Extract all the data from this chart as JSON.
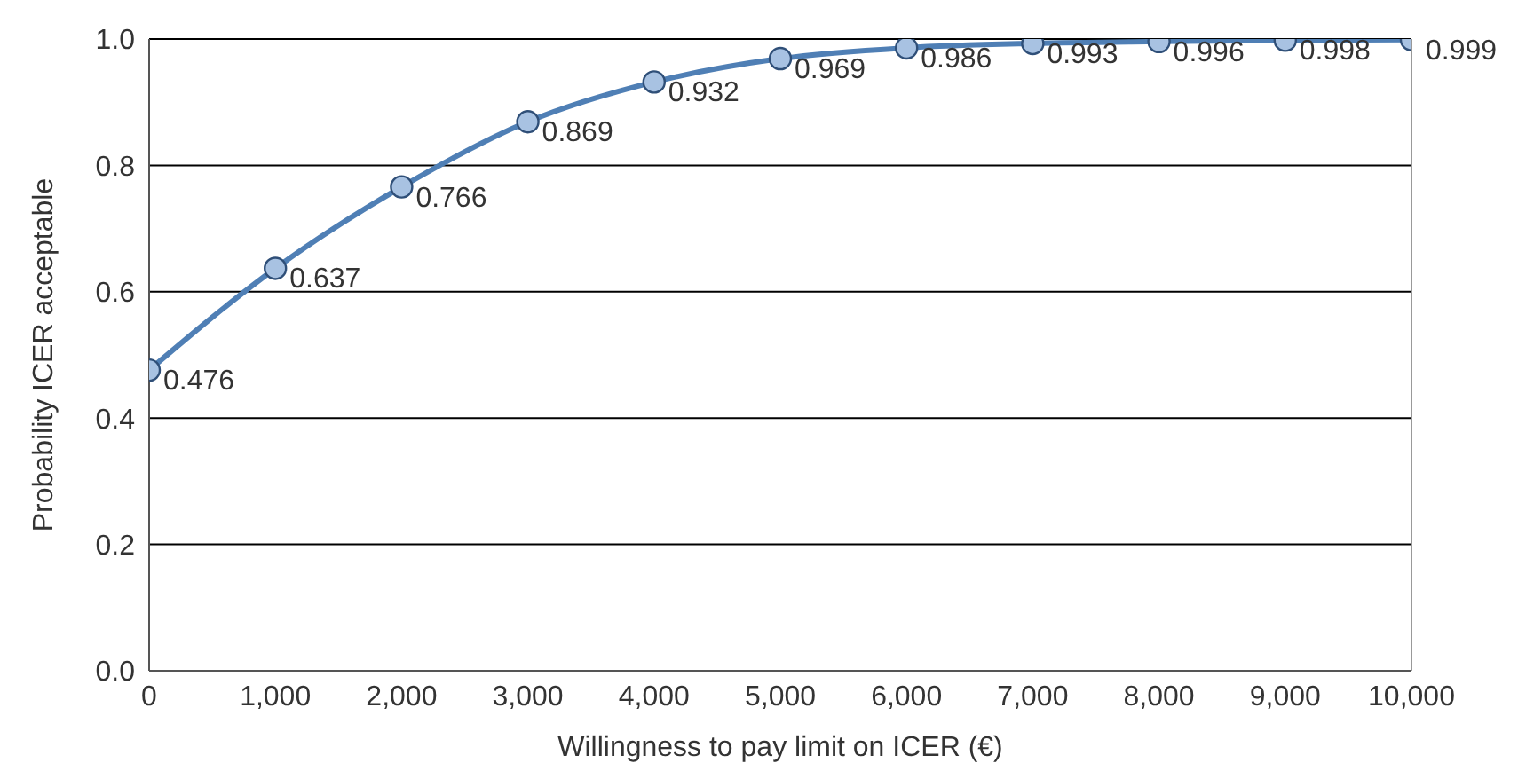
{
  "chart_data": {
    "type": "line",
    "xlabel": "Willingness to pay limit on ICER (€)",
    "ylabel": "Probability ICER acceptable",
    "x": [
      0,
      1000,
      2000,
      3000,
      4000,
      5000,
      6000,
      7000,
      8000,
      9000,
      10000
    ],
    "series": [
      {
        "color": "#4f7fb5",
        "values": [
          0.476,
          0.637,
          0.766,
          0.869,
          0.932,
          0.969,
          0.986,
          0.993,
          0.996,
          0.998,
          0.999
        ]
      }
    ],
    "xlim": [
      0,
      10000
    ],
    "xticks": [
      0,
      {
        "value": 1000,
        "label": "1,000"
      },
      {
        "value": 2000,
        "label": "2,000"
      },
      {
        "value": 3000,
        "label": "3,000"
      },
      {
        "value": 4000,
        "label": "4,000"
      },
      {
        "value": 5000,
        "label": "5,000"
      },
      {
        "value": 6000,
        "label": "6,000"
      },
      {
        "value": 7000,
        "label": "7,000"
      },
      {
        "value": 8000,
        "label": "8,000"
      },
      {
        "value": 9000,
        "label": "9,000"
      },
      {
        "value": 10000,
        "label": "10,000"
      }
    ],
    "ylim": [
      0,
      1
    ],
    "yticks": [
      {
        "value": 0,
        "label": "0.0"
      },
      {
        "value": 0.2,
        "label": "0.2"
      },
      {
        "value": 0.4,
        "label": "0.4"
      },
      {
        "value": 0.6,
        "label": "0.6"
      },
      {
        "value": 0.8,
        "label": "0.8"
      },
      {
        "value": 1,
        "label": "1.0"
      }
    ],
    "grid": "y",
    "marker": "circle",
    "line_style": "solid",
    "data_labels": true
  }
}
